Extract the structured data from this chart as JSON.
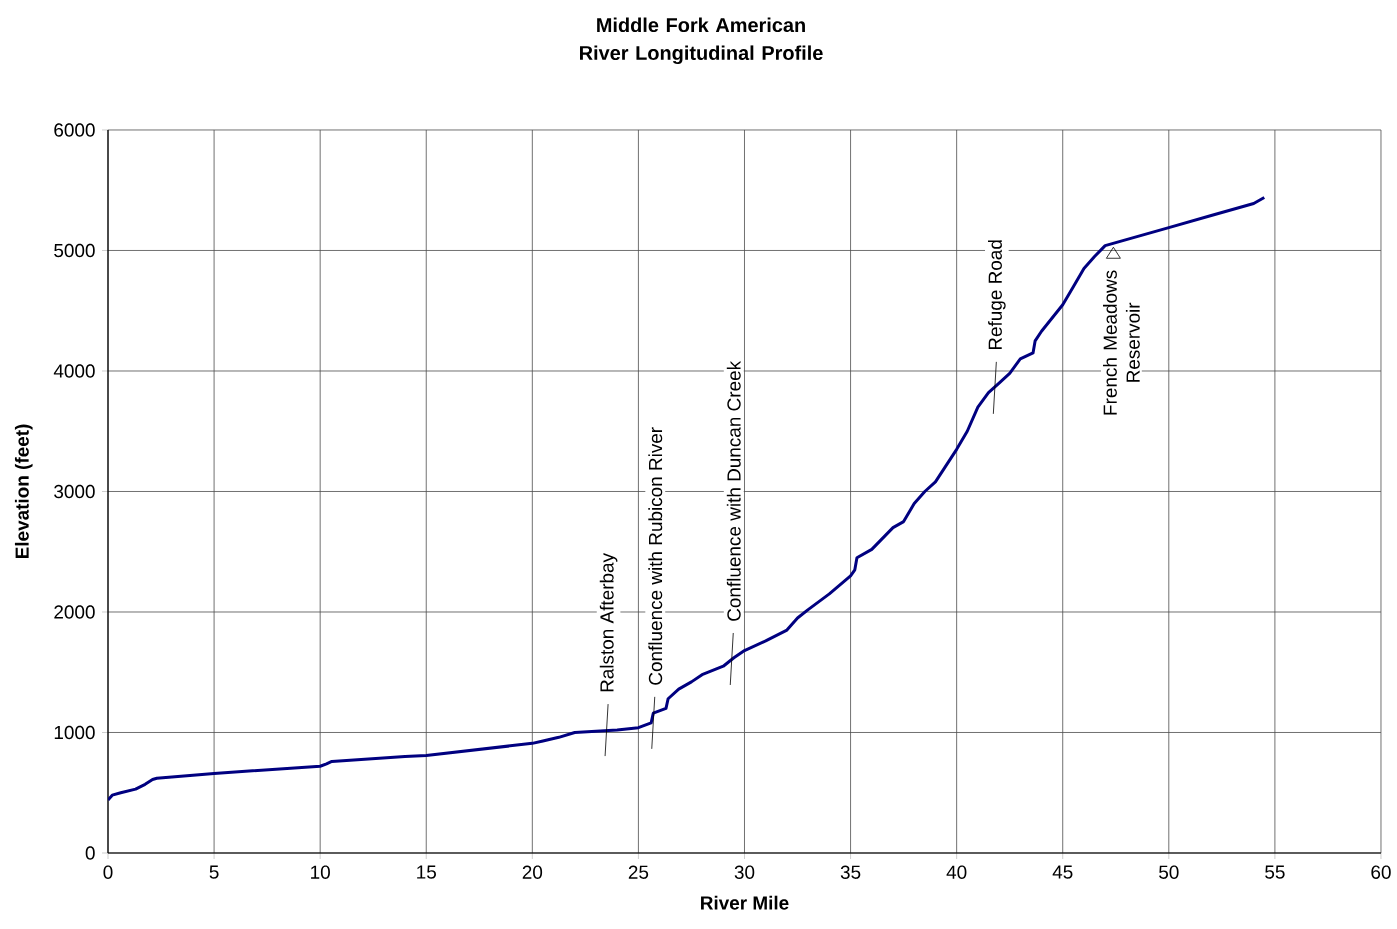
{
  "chart_data": {
    "type": "line",
    "title": "Middle Fork American River Longitudinal Profile",
    "xlabel": "River Mile",
    "ylabel": "Elevation (feet)",
    "x": [
      0,
      0.2,
      0.6,
      1.3,
      1.75,
      2.1,
      2.3,
      5,
      10,
      10.3,
      10.55,
      14,
      15,
      20,
      20.5,
      21.25,
      22,
      23,
      24,
      25,
      25.6,
      25.7,
      26.3,
      26.4,
      26.9,
      27.5,
      28,
      29,
      29.5,
      30,
      31,
      32,
      32.5,
      33,
      34,
      35,
      35.2,
      35.3,
      36,
      37,
      37.5,
      38,
      38.5,
      39,
      40,
      40.5,
      41,
      41.5,
      42,
      42.5,
      43,
      43.6,
      43.7,
      44,
      45,
      45.5,
      46,
      46.5,
      47,
      50,
      52,
      54,
      54.5
    ],
    "series": [
      {
        "color": "#000080",
        "values": [
          440,
          480,
          500,
          530,
          570,
          610,
          620,
          660,
          720,
          740,
          760,
          800,
          810,
          910,
          930,
          960,
          1000,
          1010,
          1020,
          1040,
          1080,
          1160,
          1200,
          1280,
          1360,
          1420,
          1480,
          1550,
          1620,
          1680,
          1760,
          1850,
          1950,
          2020,
          2150,
          2300,
          2350,
          2450,
          2520,
          2700,
          2750,
          2900,
          3000,
          3080,
          3350,
          3500,
          3700,
          3820,
          3900,
          3980,
          4100,
          4150,
          4250,
          4330,
          4550,
          4700,
          4850,
          4950,
          5040,
          5190,
          5290,
          5390,
          5440
        ]
      }
    ],
    "xlim": [
      0,
      60
    ],
    "xticks": [
      0,
      5,
      10,
      15,
      20,
      25,
      30,
      35,
      40,
      45,
      50,
      55,
      60
    ],
    "ylim": [
      0,
      6000
    ],
    "yticks": [
      0,
      1000,
      2000,
      3000,
      4000,
      5000,
      6000
    ],
    "grid": true,
    "marker": "none",
    "line_style": "solid",
    "annotations": [
      {
        "text": "Ralston Afterbay",
        "x": 23.5,
        "y": 1020
      },
      {
        "text": "Confluence with Rubicon River",
        "x": 25.7,
        "y": 1080
      },
      {
        "text": "Confluence with Duncan Creek",
        "x": 29.4,
        "y": 1610
      },
      {
        "text": "Refuge Road",
        "x": 41.8,
        "y": 3860
      },
      {
        "text": "French Meadows Reservoir",
        "x": 47.2,
        "y": 5040
      }
    ]
  }
}
